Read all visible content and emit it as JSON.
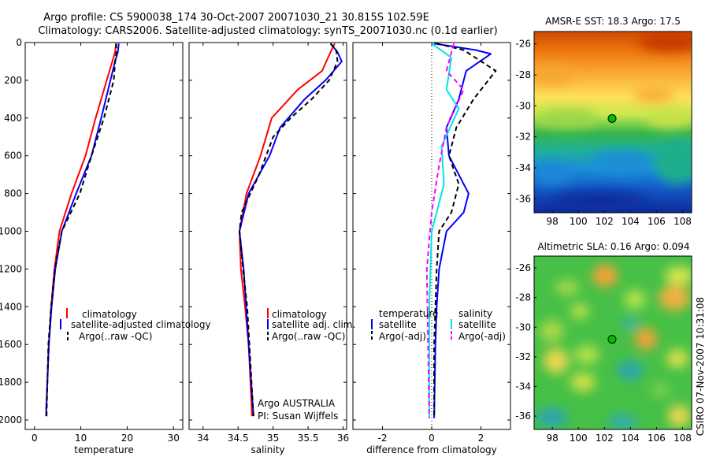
{
  "figure": {
    "title_line1": "Argo profile: CS 5900038_174 30-Oct-2007 20071030_21 30.815S 102.59E",
    "title_line2": "Climatology: CARS2006. Satellite-adjusted climatology: synTS_20071030.nc (0.1d earlier)",
    "footer_vertical": "CSIRO 07-Nov-2007 10:31:08"
  },
  "chart_data": [
    {
      "id": "temperature",
      "type": "line",
      "xlabel": "temperature",
      "ylabel": "",
      "xlim": [
        -2,
        32
      ],
      "ylim": [
        2050,
        0
      ],
      "y_reversed": true,
      "xticks": [
        0,
        10,
        20,
        30
      ],
      "yticks": [
        0,
        200,
        400,
        600,
        800,
        1000,
        1200,
        1400,
        1600,
        1800,
        2000
      ],
      "legend": {
        "position": "lower-right",
        "entries": [
          "climatology",
          "satellite-adjusted climatology",
          "Argo(..raw -QC)"
        ]
      },
      "series": [
        {
          "name": "climatology",
          "color": "#ff0000",
          "dash": "",
          "x": [
            17.6,
            17.4,
            16.8,
            15.6,
            13.2,
            11.0,
            8.0,
            5.4,
            4.3,
            3.6,
            3.1,
            2.5
          ],
          "y": [
            5,
            50,
            100,
            200,
            400,
            600,
            800,
            1000,
            1200,
            1400,
            1600,
            1950
          ]
        },
        {
          "name": "satellite-adjusted climatology",
          "color": "#0000ff",
          "dash": "",
          "x": [
            18.2,
            18.0,
            17.4,
            16.4,
            14.4,
            12.3,
            9.0,
            5.9,
            4.5,
            3.7,
            3.1,
            2.5
          ],
          "y": [
            5,
            50,
            100,
            200,
            400,
            600,
            800,
            1000,
            1200,
            1400,
            1600,
            1980
          ]
        },
        {
          "name": "Argo(..raw -QC)",
          "color": "#000000",
          "dash": "6,4",
          "x": [
            17.6,
            17.7,
            17.4,
            17.1,
            15.0,
            12.3,
            9.8,
            5.9,
            4.4,
            3.6,
            3.0,
            2.6
          ],
          "y": [
            5,
            50,
            100,
            200,
            400,
            600,
            800,
            1000,
            1200,
            1400,
            1600,
            1980
          ]
        }
      ],
      "annotations": []
    },
    {
      "id": "salinity",
      "type": "line",
      "xlabel": "salinity",
      "ylabel": "",
      "xlim": [
        33.8,
        36.05
      ],
      "ylim": [
        2050,
        0
      ],
      "y_reversed": true,
      "xticks": [
        34,
        34.5,
        35,
        35.5,
        36
      ],
      "yticks": [
        0,
        200,
        400,
        600,
        800,
        1000,
        1200,
        1400,
        1600,
        1800,
        2000
      ],
      "legend": {
        "position": "lower-right",
        "entries": [
          "climatology",
          "satellite adj. clim.",
          "Argo(..raw -QC)"
        ]
      },
      "series": [
        {
          "name": "climatology",
          "color": "#ff0000",
          "dash": "",
          "x": [
            35.88,
            35.82,
            35.7,
            35.35,
            34.98,
            34.82,
            34.62,
            34.52,
            34.54,
            34.6,
            34.65,
            34.7
          ],
          "y": [
            5,
            50,
            150,
            250,
            400,
            600,
            800,
            1000,
            1200,
            1400,
            1600,
            1980
          ]
        },
        {
          "name": "satellite adj. clim.",
          "color": "#0000ff",
          "dash": "",
          "x": [
            35.82,
            35.92,
            35.98,
            35.75,
            35.45,
            35.1,
            34.95,
            34.65,
            34.52,
            34.58,
            34.65,
            34.72
          ],
          "y": [
            5,
            50,
            100,
            200,
            300,
            450,
            600,
            800,
            1000,
            1200,
            1600,
            1980
          ]
        },
        {
          "name": "Argo(..raw -QC)",
          "color": "#000000",
          "dash": "6,4",
          "x": [
            35.82,
            35.9,
            35.92,
            35.8,
            35.55,
            35.25,
            35.0,
            34.8,
            34.55,
            34.52,
            34.57,
            34.63,
            34.72
          ],
          "y": [
            5,
            40,
            100,
            200,
            300,
            400,
            500,
            700,
            900,
            1000,
            1200,
            1400,
            1980
          ]
        }
      ],
      "annotations": [
        "Argo AUSTRALIA",
        "PI: Susan Wijffels"
      ]
    },
    {
      "id": "difference",
      "type": "line",
      "xlabel": "difference from climatology",
      "ylabel": "",
      "xlim": [
        -3.2,
        3.2
      ],
      "ylim": [
        2050,
        0
      ],
      "y_reversed": true,
      "xticks": [
        -2,
        0,
        2
      ],
      "yticks": [
        0,
        200,
        400,
        600,
        800,
        1000,
        1200,
        1400,
        1600,
        1800,
        2000
      ],
      "legend": {
        "position": "lower-center",
        "entries": [
          "temperature",
          "satellite",
          "Argo(-adj)",
          "salinity",
          "satellite",
          "Argo(-adj)"
        ]
      },
      "series": [
        {
          "name": "satellite",
          "color": "#0000ff",
          "dash": "",
          "x": [
            0.1,
            1.8,
            2.4,
            1.4,
            1.1,
            0.6,
            0.7,
            1.3,
            1.5,
            1.3,
            0.6,
            0.3,
            0.2,
            0.15,
            0.1
          ],
          "y": [
            5,
            40,
            60,
            150,
            300,
            450,
            600,
            750,
            800,
            900,
            1000,
            1200,
            1400,
            1600,
            1990
          ]
        },
        {
          "name": "Argo(-adj)",
          "color": "#000000",
          "dash": "6,4",
          "x": [
            0.2,
            1.3,
            2.6,
            1.7,
            1.0,
            0.7,
            1.1,
            0.8,
            0.3,
            0.2,
            0.1,
            0.1
          ],
          "y": [
            5,
            40,
            150,
            300,
            450,
            600,
            750,
            900,
            1000,
            1200,
            1600,
            1990
          ]
        },
        {
          "name": "satellite",
          "color": "#00e5e5",
          "dash": "",
          "x": [
            0,
            0.8,
            0.6,
            1.1,
            0.4,
            0.5,
            0.3,
            0.0,
            -0.1,
            -0.1
          ],
          "y": [
            5,
            80,
            250,
            350,
            550,
            750,
            850,
            1000,
            1400,
            1990
          ]
        },
        {
          "name": "Argo(-adj)",
          "color": "#ff00ff",
          "dash": "6,4",
          "x": [
            0.9,
            0.6,
            1.3,
            0.6,
            0.3,
            0.0,
            -0.2,
            -0.1
          ],
          "y": [
            5,
            150,
            250,
            450,
            650,
            900,
            1200,
            1990
          ]
        }
      ],
      "reference_line_x": 0,
      "annotations": []
    }
  ],
  "maps": [
    {
      "id": "sst",
      "title": "AMSR-E SST: 18.3 Argo: 17.5",
      "xticks": [
        98,
        100,
        102,
        104,
        106,
        108
      ],
      "yticks": [
        -26,
        -28,
        -30,
        -32,
        -34,
        -36
      ],
      "xlim": [
        96.6,
        108.7
      ],
      "ylim": [
        -36.9,
        -25.2
      ],
      "marker": {
        "lon": 102.59,
        "lat": -30.815,
        "color": "#00bf00"
      }
    },
    {
      "id": "sla",
      "title": "Altimetric SLA: 0.16 Argo: 0.094",
      "xticks": [
        98,
        100,
        102,
        104,
        106,
        108
      ],
      "yticks": [
        -26,
        -28,
        -30,
        -32,
        -34,
        -36
      ],
      "xlim": [
        96.6,
        108.7
      ],
      "ylim": [
        -36.9,
        -25.2
      ],
      "marker": {
        "lon": 102.59,
        "lat": -30.815,
        "color": "#00bf00"
      }
    }
  ]
}
